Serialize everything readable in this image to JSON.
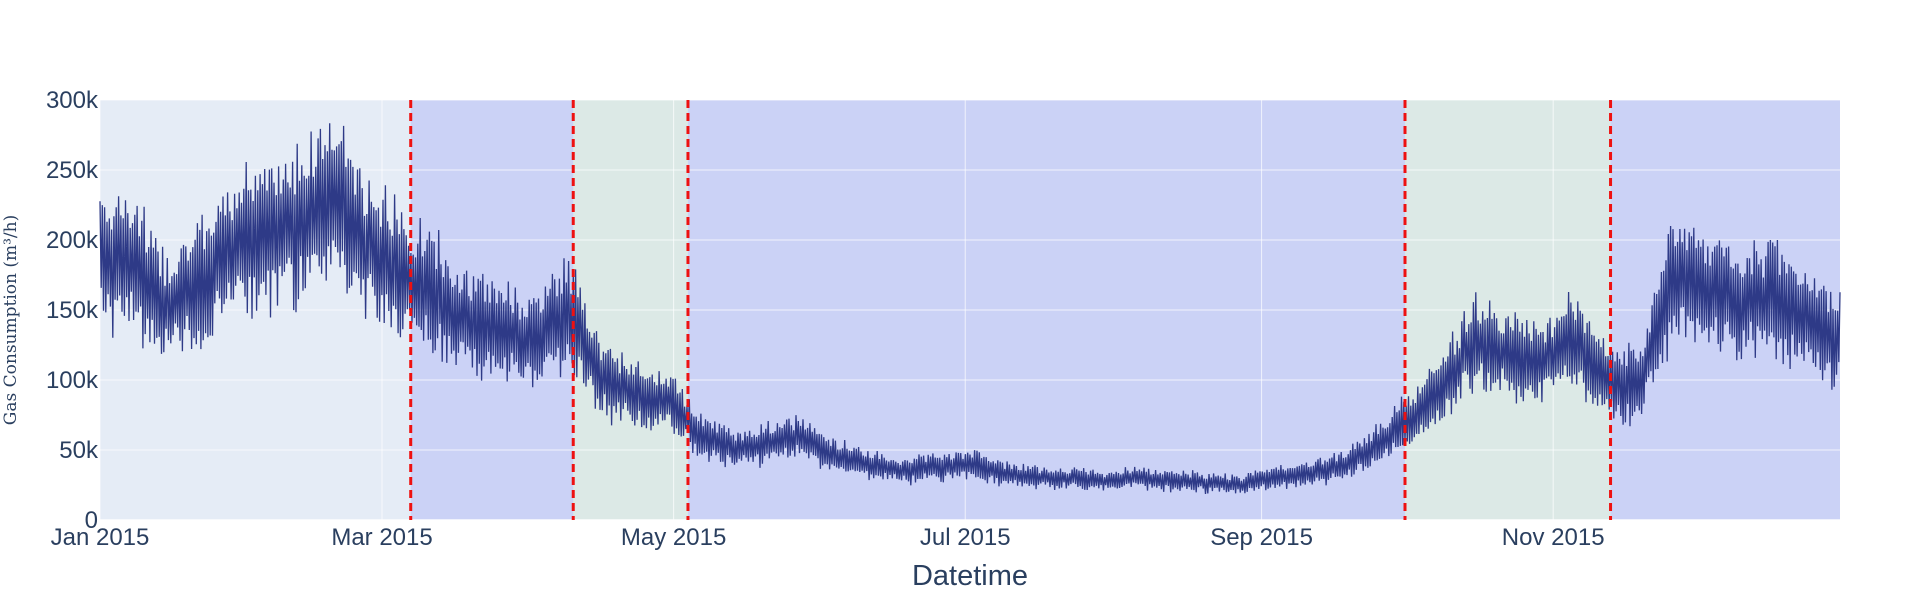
{
  "chart_data": {
    "type": "line",
    "title": "",
    "xlabel": "Datetime",
    "ylabel": "Gas Consumption (m³/h)",
    "xlim": [
      "2015-01-01",
      "2015-12-31"
    ],
    "ylim": [
      0,
      300000
    ],
    "grid": true,
    "legend": "none",
    "x_ticks": [
      {
        "date": "2015-01-01",
        "label": "Jan 2015"
      },
      {
        "date": "2015-03-01",
        "label": "Mar 2015"
      },
      {
        "date": "2015-05-01",
        "label": "May 2015"
      },
      {
        "date": "2015-07-01",
        "label": "Jul 2015"
      },
      {
        "date": "2015-09-01",
        "label": "Sep 2015"
      },
      {
        "date": "2015-11-01",
        "label": "Nov 2015"
      }
    ],
    "y_ticks": [
      {
        "value": 0,
        "label": "0"
      },
      {
        "value": 50000,
        "label": "50k"
      },
      {
        "value": 100000,
        "label": "100k"
      },
      {
        "value": 150000,
        "label": "150k"
      },
      {
        "value": 200000,
        "label": "200k"
      },
      {
        "value": 250000,
        "label": "250k"
      },
      {
        "value": 300000,
        "label": "300k"
      }
    ],
    "regions": [
      {
        "start": "2015-03-07",
        "end": "2015-04-10",
        "color": "#636efa"
      },
      {
        "start": "2015-04-10",
        "end": "2015-05-04",
        "color": "#b8e0a8"
      },
      {
        "start": "2015-05-04",
        "end": "2015-10-01",
        "color": "#636efa"
      },
      {
        "start": "2015-10-01",
        "end": "2015-11-13",
        "color": "#b8e0a8"
      },
      {
        "start": "2015-11-13",
        "end": "2015-12-31",
        "color": "#636efa"
      }
    ],
    "change_points": [
      "2015-03-07",
      "2015-04-10",
      "2015-05-04",
      "2015-10-01",
      "2015-11-13"
    ],
    "series": [
      {
        "color": "#2e3a87",
        "x": [
          "2015-01-01",
          "2015-01-08",
          "2015-01-15",
          "2015-01-22",
          "2015-01-29",
          "2015-02-05",
          "2015-02-12",
          "2015-02-19",
          "2015-02-26",
          "2015-03-05",
          "2015-03-12",
          "2015-03-19",
          "2015-03-26",
          "2015-04-02",
          "2015-04-09",
          "2015-04-16",
          "2015-04-23",
          "2015-04-30",
          "2015-05-07",
          "2015-05-14",
          "2015-05-21",
          "2015-05-28",
          "2015-06-04",
          "2015-06-11",
          "2015-06-18",
          "2015-06-25",
          "2015-07-02",
          "2015-07-09",
          "2015-07-16",
          "2015-07-23",
          "2015-07-30",
          "2015-08-06",
          "2015-08-13",
          "2015-08-20",
          "2015-08-27",
          "2015-09-03",
          "2015-09-10",
          "2015-09-17",
          "2015-09-24",
          "2015-10-01",
          "2015-10-08",
          "2015-10-15",
          "2015-10-22",
          "2015-10-29",
          "2015-11-05",
          "2015-11-12",
          "2015-11-19",
          "2015-11-26",
          "2015-12-03",
          "2015-12-10",
          "2015-12-17",
          "2015-12-24",
          "2015-12-31"
        ],
        "values": [
          190000,
          185000,
          150000,
          170000,
          195000,
          200000,
          215000,
          230000,
          195000,
          175000,
          160000,
          140000,
          135000,
          125000,
          150000,
          100000,
          90000,
          85000,
          60000,
          50000,
          55000,
          60000,
          45000,
          40000,
          35000,
          38000,
          40000,
          33000,
          30000,
          30000,
          28000,
          30000,
          28000,
          27000,
          25000,
          30000,
          32000,
          38000,
          50000,
          70000,
          90000,
          125000,
          120000,
          110000,
          130000,
          100000,
          95000,
          175000,
          165000,
          155000,
          160000,
          140000,
          130000
        ]
      }
    ]
  }
}
